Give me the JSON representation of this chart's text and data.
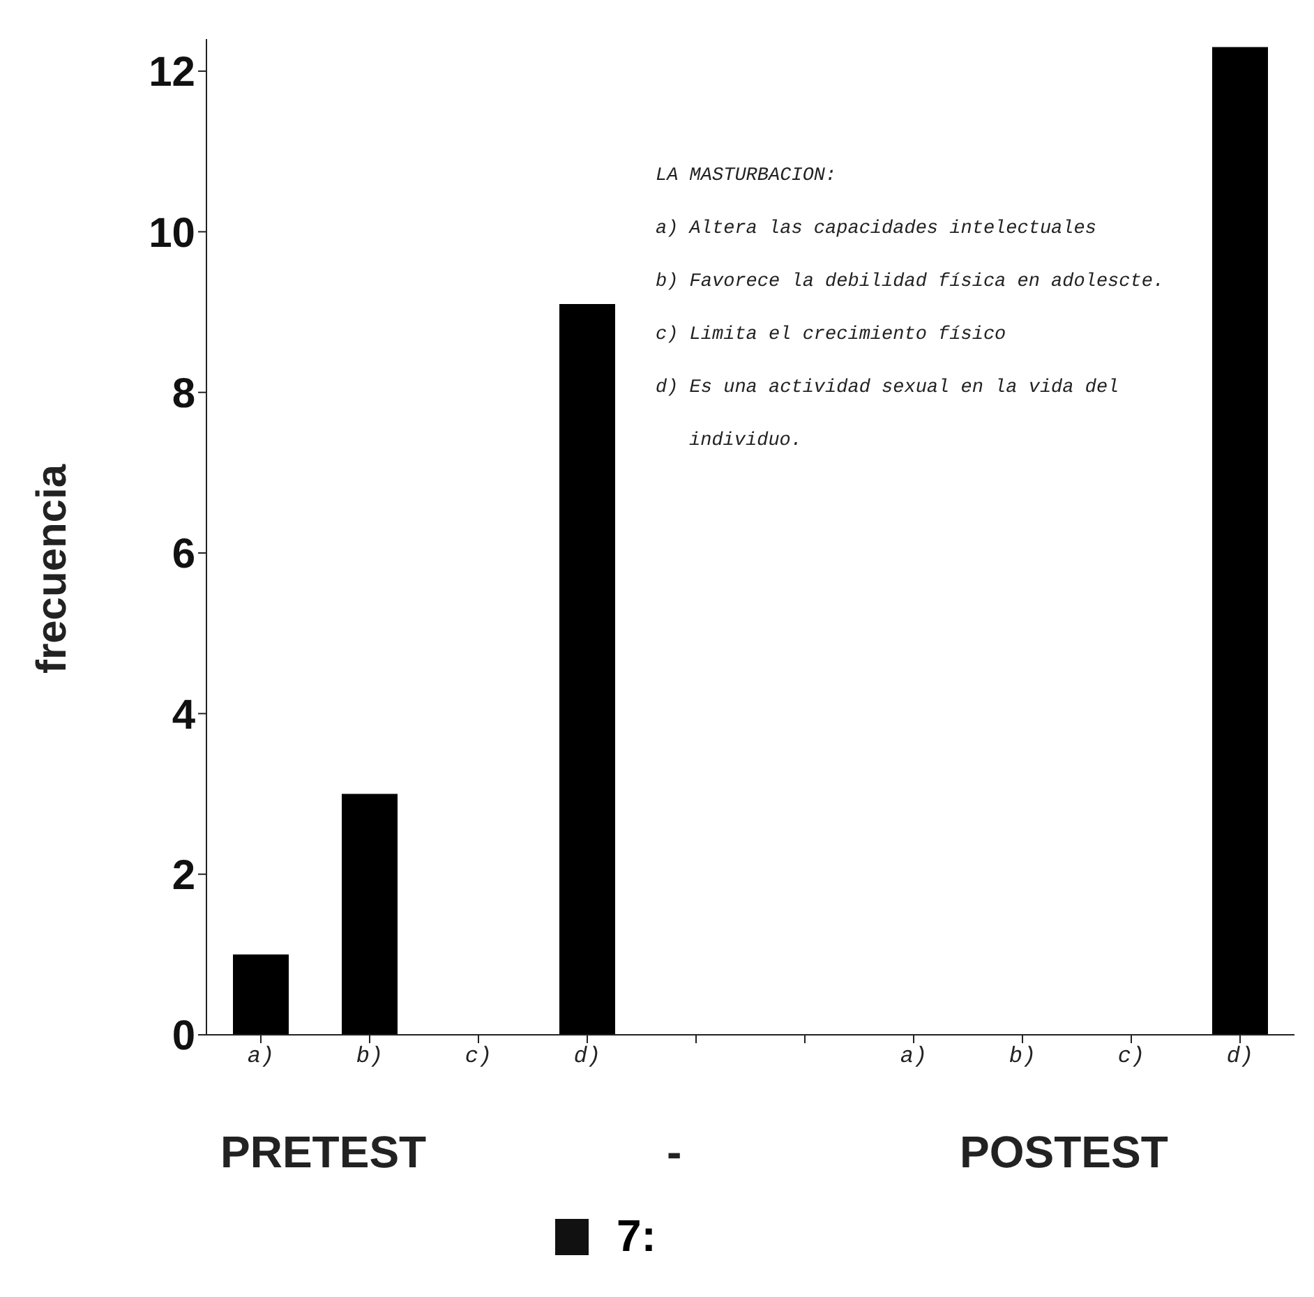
{
  "chart_data": {
    "type": "bar",
    "title": "7:",
    "ylabel": "frecuencia",
    "categories": [
      "a)",
      "b)",
      "c)",
      "d)",
      null,
      null,
      "a)",
      "b)",
      "c)",
      "d)"
    ],
    "values": [
      1,
      3,
      0,
      9.1,
      null,
      null,
      0,
      0,
      0,
      12.3
    ],
    "color": "#000000",
    "ylim": [
      0,
      12.4
    ],
    "yticks": [
      0,
      2,
      4,
      6,
      8,
      10,
      12
    ],
    "grid": false,
    "legend": false,
    "annotations": [
      "LA MASTURBACION:",
      "a) Altera las capacidades intelectuales",
      "b) Favorece la debilidad física en adolescte.",
      "c) Limita el crecimiento físico",
      "d) Es una actividad sexual en la vida del",
      "individuo.",
      "PRETEST",
      "-",
      "POSTEST"
    ]
  }
}
